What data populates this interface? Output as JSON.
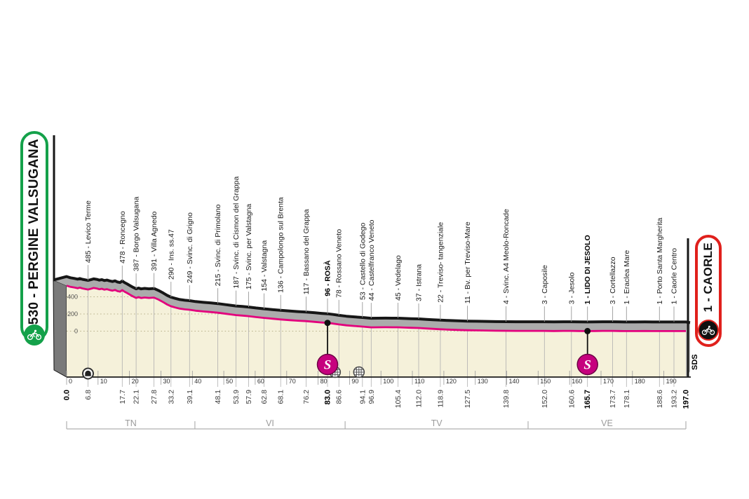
{
  "stage": {
    "start_label": "530 - PERGINE VALSUGANA",
    "finish_label": "1 - CAORLE",
    "credit": "SDS",
    "start_color": "#14a14a",
    "finish_color": "#e0201c"
  },
  "chart_data": {
    "type": "area",
    "title": "Stage altimetry profile Pergine Valsugana - Caorle",
    "x_unit": "km",
    "y_unit": "m",
    "x_range": [
      0,
      197
    ],
    "y_gridlines": [
      0,
      200,
      400
    ],
    "axis_km_ticks": [
      0,
      10,
      20,
      30,
      40,
      50,
      60,
      70,
      80,
      90,
      100,
      110,
      120,
      130,
      140,
      150,
      160,
      170,
      180,
      190
    ],
    "start_km_label": "0.0",
    "finish_km_label": "197.0",
    "start_elev": 530,
    "finish_elev": 1,
    "profile": [
      [
        0,
        530
      ],
      [
        1.2,
        516
      ],
      [
        2.5,
        508
      ],
      [
        3.5,
        500
      ],
      [
        4.2,
        507
      ],
      [
        5,
        498
      ],
      [
        6.8,
        485
      ],
      [
        7.6,
        492
      ],
      [
        8.6,
        503
      ],
      [
        9.6,
        497
      ],
      [
        10.4,
        488
      ],
      [
        11.2,
        494
      ],
      [
        12,
        483
      ],
      [
        12.8,
        489
      ],
      [
        13.6,
        480
      ],
      [
        14.6,
        472
      ],
      [
        15.4,
        480
      ],
      [
        16.2,
        466
      ],
      [
        17,
        460
      ],
      [
        17.7,
        478
      ],
      [
        18.4,
        460
      ],
      [
        19.2,
        445
      ],
      [
        20.2,
        424
      ],
      [
        21.2,
        403
      ],
      [
        22.1,
        387
      ],
      [
        22.9,
        396
      ],
      [
        23.7,
        386
      ],
      [
        24.8,
        392
      ],
      [
        26.2,
        387
      ],
      [
        27.8,
        391
      ],
      [
        29.2,
        368
      ],
      [
        30.8,
        336
      ],
      [
        32,
        310
      ],
      [
        33.2,
        290
      ],
      [
        34.6,
        275
      ],
      [
        36,
        262
      ],
      [
        37.6,
        254
      ],
      [
        39.1,
        249
      ],
      [
        41,
        238
      ],
      [
        43.5,
        229
      ],
      [
        46,
        222
      ],
      [
        48.1,
        215
      ],
      [
        50,
        206
      ],
      [
        52,
        196
      ],
      [
        53.9,
        187
      ],
      [
        55.9,
        181
      ],
      [
        57.9,
        175
      ],
      [
        60.2,
        164
      ],
      [
        62.8,
        154
      ],
      [
        65.4,
        145
      ],
      [
        68.1,
        136
      ],
      [
        71,
        128
      ],
      [
        73.6,
        122
      ],
      [
        76.2,
        117
      ],
      [
        79,
        108
      ],
      [
        81,
        101
      ],
      [
        83,
        96
      ],
      [
        84.8,
        88
      ],
      [
        86.6,
        78
      ],
      [
        89,
        68
      ],
      [
        91.5,
        60
      ],
      [
        94.1,
        53
      ],
      [
        96.9,
        44
      ],
      [
        99,
        45
      ],
      [
        101.5,
        46
      ],
      [
        103.5,
        45
      ],
      [
        105.4,
        45
      ],
      [
        107.5,
        42
      ],
      [
        109.5,
        39
      ],
      [
        112,
        37
      ],
      [
        114.5,
        31
      ],
      [
        116.5,
        27
      ],
      [
        118.9,
        22
      ],
      [
        121.5,
        18
      ],
      [
        124.5,
        14
      ],
      [
        127.5,
        11
      ],
      [
        130.5,
        9
      ],
      [
        133.5,
        7
      ],
      [
        136.5,
        5
      ],
      [
        139.8,
        4
      ],
      [
        143,
        3
      ],
      [
        146.8,
        3
      ],
      [
        150,
        3
      ],
      [
        152,
        3
      ],
      [
        155,
        2
      ],
      [
        158,
        3
      ],
      [
        160.6,
        3
      ],
      [
        163,
        2
      ],
      [
        165.7,
        1
      ],
      [
        168,
        2
      ],
      [
        170.5,
        3
      ],
      [
        173.7,
        3
      ],
      [
        176,
        2
      ],
      [
        178.1,
        1
      ],
      [
        181,
        1
      ],
      [
        184,
        2
      ],
      [
        186.5,
        1
      ],
      [
        188.6,
        1
      ],
      [
        191,
        1
      ],
      [
        193.2,
        1
      ],
      [
        195,
        1
      ],
      [
        197,
        1
      ]
    ],
    "waypoints": [
      {
        "km": 6.8,
        "elev": 485,
        "name": "Levico Terme",
        "bold": false
      },
      {
        "km": 17.7,
        "elev": 478,
        "name": "Roncegno",
        "bold": false
      },
      {
        "km": 22.1,
        "elev": 387,
        "name": "Borgo Valsugana",
        "bold": false
      },
      {
        "km": 27.8,
        "elev": 391,
        "name": "Villa Agnedo",
        "bold": false
      },
      {
        "km": 33.2,
        "elev": 290,
        "name": "Ins. ss.47",
        "bold": false
      },
      {
        "km": 39.1,
        "elev": 249,
        "name": "Svinc. di Grigno",
        "bold": false
      },
      {
        "km": 48.1,
        "elev": 215,
        "name": "Svinc. di Primolano",
        "bold": false
      },
      {
        "km": 53.9,
        "elev": 187,
        "name": "Svinc. di Cismon del Grappa",
        "bold": false
      },
      {
        "km": 57.9,
        "elev": 175,
        "name": "Svinc. per Valstagna",
        "bold": false
      },
      {
        "km": 62.8,
        "elev": 154,
        "name": "Valstagna",
        "bold": false
      },
      {
        "km": 68.1,
        "elev": 136,
        "name": "Campolongo sul Brenta",
        "bold": false
      },
      {
        "km": 76.2,
        "elev": 117,
        "name": "Bassano del Grappa",
        "bold": false
      },
      {
        "km": 83.0,
        "elev": 96,
        "name": "ROSÀ",
        "bold": true
      },
      {
        "km": 86.6,
        "elev": 78,
        "name": "Rossano Veneto",
        "bold": false
      },
      {
        "km": 94.1,
        "elev": 53,
        "name": "Castello di Godego",
        "bold": false
      },
      {
        "km": 96.9,
        "elev": 44,
        "name": "Castelfranco Veneto",
        "bold": false
      },
      {
        "km": 105.4,
        "elev": 45,
        "name": "Vedelago",
        "bold": false
      },
      {
        "km": 112.0,
        "elev": 37,
        "name": "Istrana",
        "bold": false
      },
      {
        "km": 118.9,
        "elev": 22,
        "name": "Treviso- tangenziale",
        "bold": false
      },
      {
        "km": 127.5,
        "elev": 11,
        "name": "Bv. per Treviso-Mare",
        "bold": false
      },
      {
        "km": 139.8,
        "elev": 4,
        "name": "Svinc. A4 Meolo-Roncade",
        "bold": false
      },
      {
        "km": 152.0,
        "elev": 3,
        "name": "Caposile",
        "bold": false
      },
      {
        "km": 160.6,
        "elev": 3,
        "name": "Jesolo",
        "bold": false
      },
      {
        "km": 165.7,
        "elev": 1,
        "name": "LIDO DI JESOLO",
        "bold": true
      },
      {
        "km": 173.7,
        "elev": 3,
        "name": "Cortellazzo",
        "bold": false
      },
      {
        "km": 178.1,
        "elev": 1,
        "name": "Eraclea Mare",
        "bold": false
      },
      {
        "km": 188.6,
        "elev": 1,
        "name": "Porto Santa Margherita",
        "bold": false
      },
      {
        "km": 193.2,
        "elev": 1,
        "name": "Caorle Centro",
        "bold": false
      }
    ],
    "sprints": [
      {
        "km": 83.0,
        "symbol": "S"
      },
      {
        "km": 165.7,
        "symbol": "S"
      }
    ],
    "tunnels": [
      6.8
    ],
    "level_crossings": [
      85.4,
      93.0
    ],
    "provinces": [
      {
        "label": "TN",
        "from_km": 0,
        "to_km": 40.8
      },
      {
        "label": "VI",
        "from_km": 40.8,
        "to_km": 88.6
      },
      {
        "label": "TV",
        "from_km": 88.6,
        "to_km": 146.8
      },
      {
        "label": "VE",
        "from_km": 146.8,
        "to_km": 197
      }
    ],
    "colors": {
      "profile_line": "#e3017d",
      "area_fill": "#f5f1da",
      "band_fill": "#ababab",
      "edge_black": "#161616",
      "slab_fill": "#7a7a7a",
      "grid_dots": "#b9b38c",
      "thin_lines": "#b0b0b0",
      "sprint_fill": "#c6017e",
      "province_text": "#9b9b9b"
    }
  }
}
